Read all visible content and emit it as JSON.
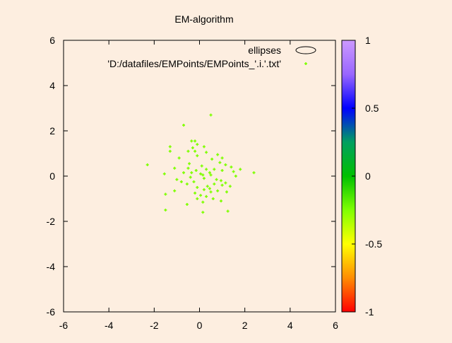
{
  "chart_data": {
    "type": "scatter",
    "title": "EM-algorithm",
    "xlim": [
      -6,
      6
    ],
    "ylim": [
      -6,
      6
    ],
    "xticks": [
      -6,
      -4,
      -2,
      0,
      2,
      4,
      6
    ],
    "yticks": [
      -6,
      -4,
      -2,
      0,
      2,
      4,
      6
    ],
    "xtick_labels": [
      "-6",
      "-4",
      "-2",
      "0",
      "2",
      "4",
      "6"
    ],
    "ytick_labels": [
      "-6",
      "-4",
      "-2",
      "0",
      "2",
      "4",
      "6"
    ],
    "grid": false,
    "legend_position": "top-right",
    "legend": [
      {
        "label": "ellipses",
        "marker": "ellipse",
        "color": "#000000"
      },
      {
        "label": "'D:/datafiles/EMPoints/EMPoints_'.i.'.txt'",
        "marker": "point",
        "color": "#7fff00"
      }
    ],
    "point_color": "#7fff00",
    "colorbar": {
      "range": [
        -1,
        1
      ],
      "ticks": [
        1,
        0.5,
        0,
        -0.5,
        -1
      ],
      "tick_labels": [
        "1",
        "0.5",
        "0",
        "-0.5",
        "-1"
      ],
      "colors": [
        "#ff0000",
        "#ff8c00",
        "#ffff00",
        "#7fff00",
        "#00c000",
        "#00a060",
        "#0000ff",
        "#9966ff",
        "#cc99ff"
      ]
    },
    "series": [
      {
        "name": "'D:/datafiles/EMPoints/EMPoints_'.i.'.txt'",
        "points": [
          [
            0.5,
            2.7
          ],
          [
            -0.7,
            2.25
          ],
          [
            -0.35,
            1.55
          ],
          [
            -0.2,
            1.55
          ],
          [
            -0.1,
            1.4
          ],
          [
            0.2,
            1.3
          ],
          [
            -0.3,
            1.25
          ],
          [
            -1.3,
            1.3
          ],
          [
            -0.5,
            1.1
          ],
          [
            -1.3,
            1.1
          ],
          [
            -0.2,
            1.1
          ],
          [
            0.3,
            1.05
          ],
          [
            0.8,
            0.95
          ],
          [
            -0.1,
            0.9
          ],
          [
            1.0,
            0.8
          ],
          [
            -0.9,
            0.8
          ],
          [
            0.55,
            0.75
          ],
          [
            0.9,
            0.6
          ],
          [
            1.15,
            0.5
          ],
          [
            -0.45,
            0.55
          ],
          [
            -2.3,
            0.5
          ],
          [
            0.1,
            0.45
          ],
          [
            1.4,
            0.4
          ],
          [
            -1.1,
            0.35
          ],
          [
            -0.5,
            0.35
          ],
          [
            0.65,
            0.3
          ],
          [
            0.3,
            0.3
          ],
          [
            1.8,
            0.3
          ],
          [
            1.0,
            0.25
          ],
          [
            -0.15,
            0.25
          ],
          [
            1.5,
            0.2
          ],
          [
            0.45,
            0.15
          ],
          [
            2.4,
            0.15
          ],
          [
            -0.7,
            0.15
          ],
          [
            -0.35,
            0.15
          ],
          [
            -1.55,
            0.1
          ],
          [
            0.05,
            0.1
          ],
          [
            0.5,
            0.05
          ],
          [
            1.6,
            0.0
          ],
          [
            -0.4,
            -0.05
          ],
          [
            0.15,
            0.05
          ],
          [
            0.2,
            -0.1
          ],
          [
            -1.0,
            -0.15
          ],
          [
            0.95,
            -0.2
          ],
          [
            -0.8,
            -0.25
          ],
          [
            1.15,
            -0.3
          ],
          [
            -0.55,
            -0.35
          ],
          [
            0.65,
            -0.35
          ],
          [
            1.0,
            -0.4
          ],
          [
            0.35,
            -0.45
          ],
          [
            1.35,
            -0.45
          ],
          [
            -0.1,
            -0.5
          ],
          [
            0.45,
            -0.55
          ],
          [
            0.2,
            -0.6
          ],
          [
            0.8,
            -0.65
          ],
          [
            -1.1,
            -0.65
          ],
          [
            1.2,
            -0.7
          ],
          [
            0.5,
            -0.7
          ],
          [
            -0.2,
            -0.75
          ],
          [
            -1.5,
            -0.8
          ],
          [
            0.05,
            -0.85
          ],
          [
            0.3,
            -0.9
          ],
          [
            -0.1,
            -1.0
          ],
          [
            0.6,
            -1.0
          ],
          [
            0.95,
            -1.1
          ],
          [
            0.15,
            -1.15
          ],
          [
            -0.55,
            -1.25
          ],
          [
            -1.5,
            -1.5
          ],
          [
            1.25,
            -1.55
          ],
          [
            0.15,
            -1.6
          ],
          [
            0.75,
            -0.15
          ],
          [
            -0.25,
            -0.25
          ]
        ]
      }
    ]
  }
}
